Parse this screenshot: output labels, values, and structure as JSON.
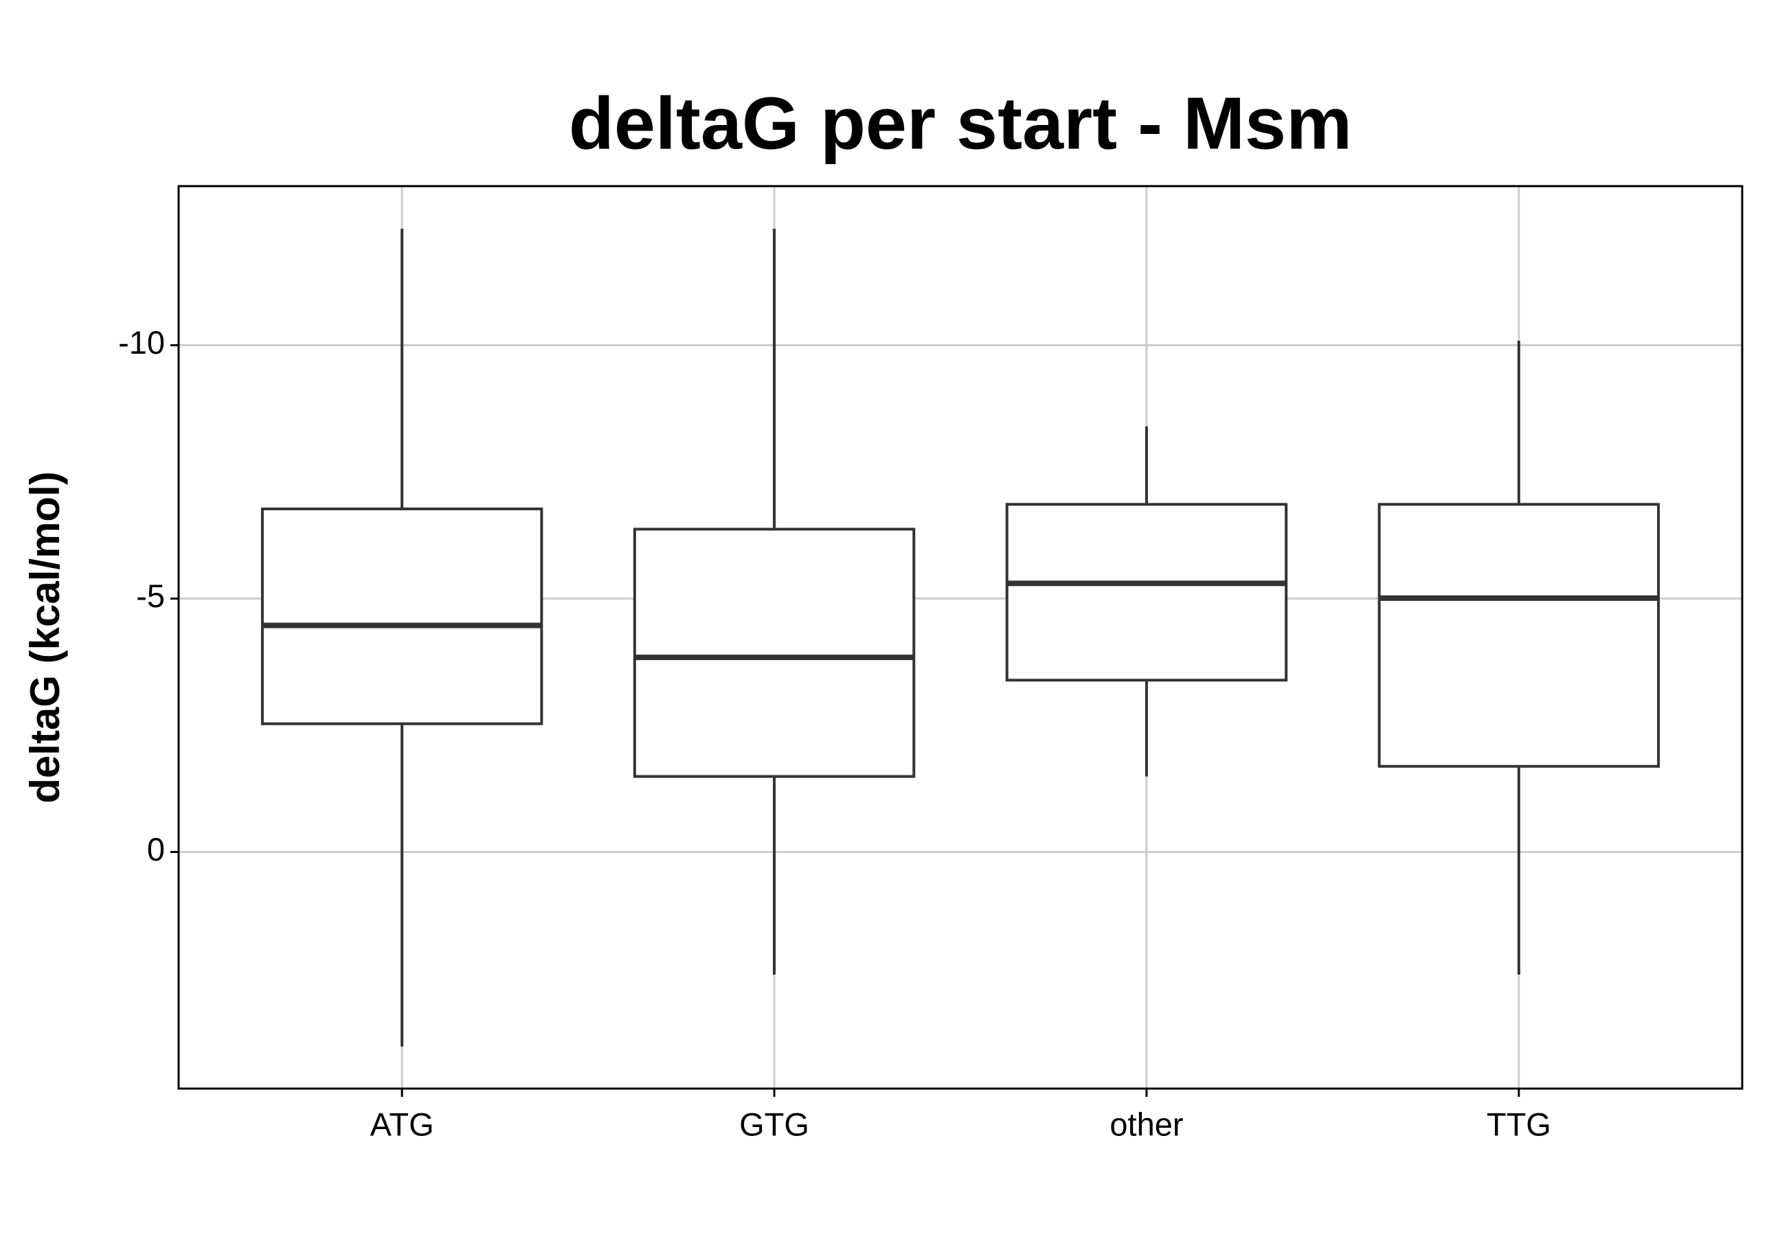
{
  "chart_data": {
    "type": "box",
    "title": "deltaG per start - Msm",
    "y_label": "deltaG (kcal/mol)",
    "categories": [
      "ATG",
      "GTG",
      "other",
      "TTG"
    ],
    "min": [
      -12.3,
      -12.3,
      -8.4,
      -10.09
    ],
    "q1": [
      -6.77,
      -6.37,
      -6.86,
      -6.86
    ],
    "median": [
      -4.47,
      -3.84,
      -5.3,
      -5.01
    ],
    "q3": [
      -2.53,
      -1.49,
      -3.39,
      -1.69
    ],
    "max": [
      3.84,
      2.42,
      -1.49,
      2.42
    ],
    "ylim": [
      -13.14,
      4.67
    ],
    "y_inverted": true,
    "yticks": [
      -10,
      -5,
      0
    ],
    "grid": true,
    "color": "#333333"
  }
}
